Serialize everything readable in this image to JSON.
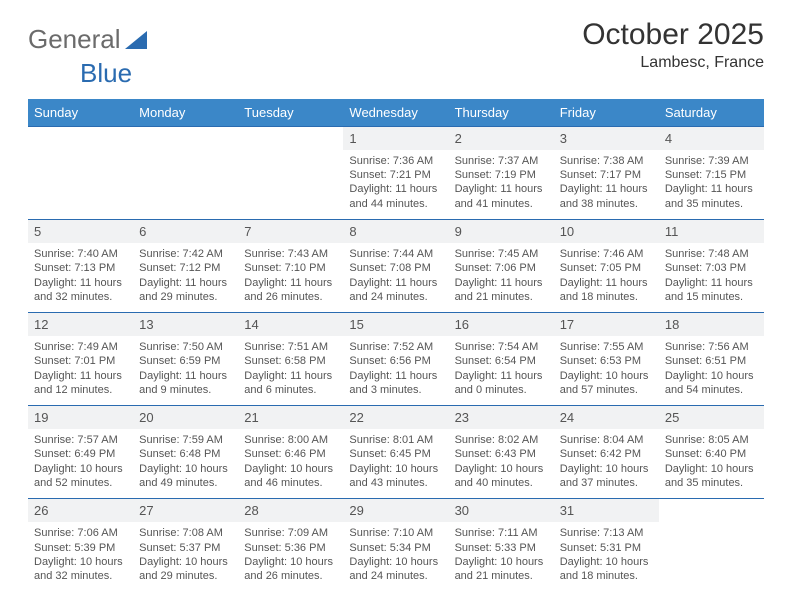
{
  "brand": {
    "part1": "General",
    "part2": "Blue"
  },
  "title": "October 2025",
  "location": "Lambesc, France",
  "colors": {
    "header_bg": "#3b87c8",
    "header_text": "#ffffff",
    "daynum_bg": "#f1f2f3",
    "daynum_text": "#555555",
    "week_divider": "#2a6bb0",
    "body_text": "#555555",
    "background": "#ffffff"
  },
  "typography": {
    "title_fontsize": 30,
    "location_fontsize": 16,
    "weekday_fontsize": 13,
    "daynum_fontsize": 13,
    "cell_fontsize": 11
  },
  "weekdays": [
    "Sunday",
    "Monday",
    "Tuesday",
    "Wednesday",
    "Thursday",
    "Friday",
    "Saturday"
  ],
  "weeks": [
    {
      "days": [
        {
          "blank": true
        },
        {
          "blank": true
        },
        {
          "blank": true
        },
        {
          "n": "1",
          "sunrise": "Sunrise: 7:36 AM",
          "sunset": "Sunset: 7:21 PM",
          "dl1": "Daylight: 11 hours",
          "dl2": "and 44 minutes."
        },
        {
          "n": "2",
          "sunrise": "Sunrise: 7:37 AM",
          "sunset": "Sunset: 7:19 PM",
          "dl1": "Daylight: 11 hours",
          "dl2": "and 41 minutes."
        },
        {
          "n": "3",
          "sunrise": "Sunrise: 7:38 AM",
          "sunset": "Sunset: 7:17 PM",
          "dl1": "Daylight: 11 hours",
          "dl2": "and 38 minutes."
        },
        {
          "n": "4",
          "sunrise": "Sunrise: 7:39 AM",
          "sunset": "Sunset: 7:15 PM",
          "dl1": "Daylight: 11 hours",
          "dl2": "and 35 minutes."
        }
      ]
    },
    {
      "days": [
        {
          "n": "5",
          "sunrise": "Sunrise: 7:40 AM",
          "sunset": "Sunset: 7:13 PM",
          "dl1": "Daylight: 11 hours",
          "dl2": "and 32 minutes."
        },
        {
          "n": "6",
          "sunrise": "Sunrise: 7:42 AM",
          "sunset": "Sunset: 7:12 PM",
          "dl1": "Daylight: 11 hours",
          "dl2": "and 29 minutes."
        },
        {
          "n": "7",
          "sunrise": "Sunrise: 7:43 AM",
          "sunset": "Sunset: 7:10 PM",
          "dl1": "Daylight: 11 hours",
          "dl2": "and 26 minutes."
        },
        {
          "n": "8",
          "sunrise": "Sunrise: 7:44 AM",
          "sunset": "Sunset: 7:08 PM",
          "dl1": "Daylight: 11 hours",
          "dl2": "and 24 minutes."
        },
        {
          "n": "9",
          "sunrise": "Sunrise: 7:45 AM",
          "sunset": "Sunset: 7:06 PM",
          "dl1": "Daylight: 11 hours",
          "dl2": "and 21 minutes."
        },
        {
          "n": "10",
          "sunrise": "Sunrise: 7:46 AM",
          "sunset": "Sunset: 7:05 PM",
          "dl1": "Daylight: 11 hours",
          "dl2": "and 18 minutes."
        },
        {
          "n": "11",
          "sunrise": "Sunrise: 7:48 AM",
          "sunset": "Sunset: 7:03 PM",
          "dl1": "Daylight: 11 hours",
          "dl2": "and 15 minutes."
        }
      ]
    },
    {
      "days": [
        {
          "n": "12",
          "sunrise": "Sunrise: 7:49 AM",
          "sunset": "Sunset: 7:01 PM",
          "dl1": "Daylight: 11 hours",
          "dl2": "and 12 minutes."
        },
        {
          "n": "13",
          "sunrise": "Sunrise: 7:50 AM",
          "sunset": "Sunset: 6:59 PM",
          "dl1": "Daylight: 11 hours",
          "dl2": "and 9 minutes."
        },
        {
          "n": "14",
          "sunrise": "Sunrise: 7:51 AM",
          "sunset": "Sunset: 6:58 PM",
          "dl1": "Daylight: 11 hours",
          "dl2": "and 6 minutes."
        },
        {
          "n": "15",
          "sunrise": "Sunrise: 7:52 AM",
          "sunset": "Sunset: 6:56 PM",
          "dl1": "Daylight: 11 hours",
          "dl2": "and 3 minutes."
        },
        {
          "n": "16",
          "sunrise": "Sunrise: 7:54 AM",
          "sunset": "Sunset: 6:54 PM",
          "dl1": "Daylight: 11 hours",
          "dl2": "and 0 minutes."
        },
        {
          "n": "17",
          "sunrise": "Sunrise: 7:55 AM",
          "sunset": "Sunset: 6:53 PM",
          "dl1": "Daylight: 10 hours",
          "dl2": "and 57 minutes."
        },
        {
          "n": "18",
          "sunrise": "Sunrise: 7:56 AM",
          "sunset": "Sunset: 6:51 PM",
          "dl1": "Daylight: 10 hours",
          "dl2": "and 54 minutes."
        }
      ]
    },
    {
      "days": [
        {
          "n": "19",
          "sunrise": "Sunrise: 7:57 AM",
          "sunset": "Sunset: 6:49 PM",
          "dl1": "Daylight: 10 hours",
          "dl2": "and 52 minutes."
        },
        {
          "n": "20",
          "sunrise": "Sunrise: 7:59 AM",
          "sunset": "Sunset: 6:48 PM",
          "dl1": "Daylight: 10 hours",
          "dl2": "and 49 minutes."
        },
        {
          "n": "21",
          "sunrise": "Sunrise: 8:00 AM",
          "sunset": "Sunset: 6:46 PM",
          "dl1": "Daylight: 10 hours",
          "dl2": "and 46 minutes."
        },
        {
          "n": "22",
          "sunrise": "Sunrise: 8:01 AM",
          "sunset": "Sunset: 6:45 PM",
          "dl1": "Daylight: 10 hours",
          "dl2": "and 43 minutes."
        },
        {
          "n": "23",
          "sunrise": "Sunrise: 8:02 AM",
          "sunset": "Sunset: 6:43 PM",
          "dl1": "Daylight: 10 hours",
          "dl2": "and 40 minutes."
        },
        {
          "n": "24",
          "sunrise": "Sunrise: 8:04 AM",
          "sunset": "Sunset: 6:42 PM",
          "dl1": "Daylight: 10 hours",
          "dl2": "and 37 minutes."
        },
        {
          "n": "25",
          "sunrise": "Sunrise: 8:05 AM",
          "sunset": "Sunset: 6:40 PM",
          "dl1": "Daylight: 10 hours",
          "dl2": "and 35 minutes."
        }
      ]
    },
    {
      "days": [
        {
          "n": "26",
          "sunrise": "Sunrise: 7:06 AM",
          "sunset": "Sunset: 5:39 PM",
          "dl1": "Daylight: 10 hours",
          "dl2": "and 32 minutes."
        },
        {
          "n": "27",
          "sunrise": "Sunrise: 7:08 AM",
          "sunset": "Sunset: 5:37 PM",
          "dl1": "Daylight: 10 hours",
          "dl2": "and 29 minutes."
        },
        {
          "n": "28",
          "sunrise": "Sunrise: 7:09 AM",
          "sunset": "Sunset: 5:36 PM",
          "dl1": "Daylight: 10 hours",
          "dl2": "and 26 minutes."
        },
        {
          "n": "29",
          "sunrise": "Sunrise: 7:10 AM",
          "sunset": "Sunset: 5:34 PM",
          "dl1": "Daylight: 10 hours",
          "dl2": "and 24 minutes."
        },
        {
          "n": "30",
          "sunrise": "Sunrise: 7:11 AM",
          "sunset": "Sunset: 5:33 PM",
          "dl1": "Daylight: 10 hours",
          "dl2": "and 21 minutes."
        },
        {
          "n": "31",
          "sunrise": "Sunrise: 7:13 AM",
          "sunset": "Sunset: 5:31 PM",
          "dl1": "Daylight: 10 hours",
          "dl2": "and 18 minutes."
        },
        {
          "blank": true
        }
      ]
    }
  ]
}
